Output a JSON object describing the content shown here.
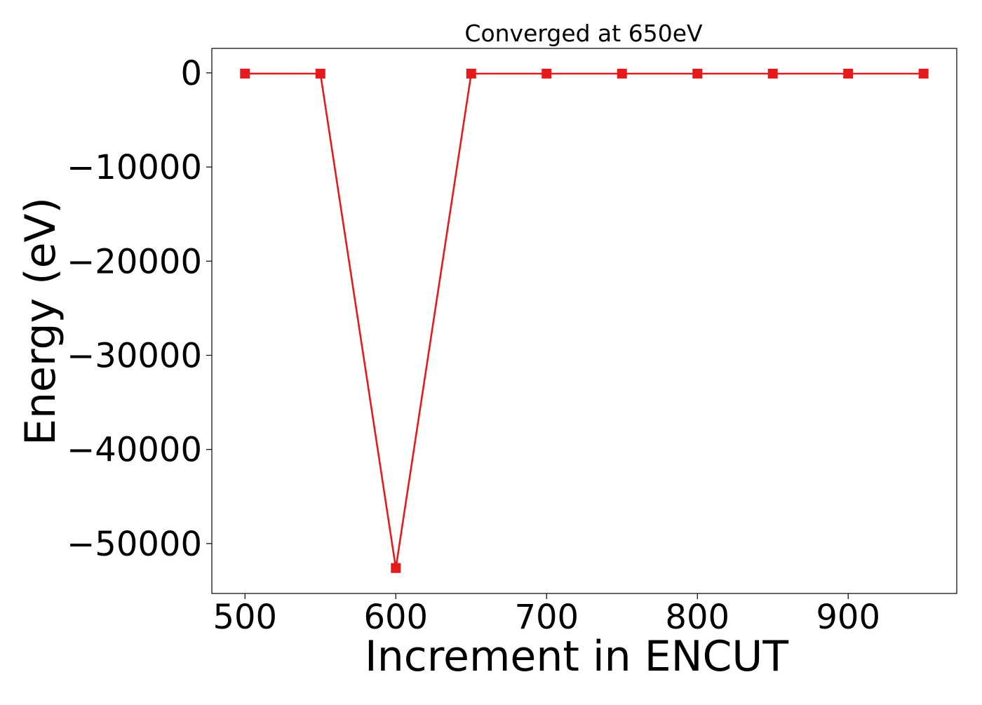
{
  "chart_data": {
    "type": "line",
    "title": "Converged at 650eV",
    "xlabel": "Increment in ENCUT",
    "ylabel": "Energy (eV)",
    "xlim": [
      478,
      972
    ],
    "ylim": [
      -55300,
      2600
    ],
    "xticks": [
      500,
      600,
      700,
      800,
      900
    ],
    "xtick_labels": [
      "500",
      "600",
      "700",
      "800",
      "900"
    ],
    "yticks": [
      0,
      -10000,
      -20000,
      -30000,
      -40000,
      -50000
    ],
    "ytick_labels": [
      "0",
      "−10000",
      "−20000",
      "−30000",
      "−40000",
      "−50000"
    ],
    "grid": false,
    "legend": null,
    "series": [
      {
        "color": "#e41a1c",
        "marker": "square",
        "x": [
          500,
          550,
          600,
          650,
          700,
          750,
          800,
          850,
          900,
          950
        ],
        "y": [
          -78,
          -79,
          -52600,
          -80,
          -80,
          -80,
          -80,
          -80,
          -80,
          -80
        ]
      }
    ]
  }
}
